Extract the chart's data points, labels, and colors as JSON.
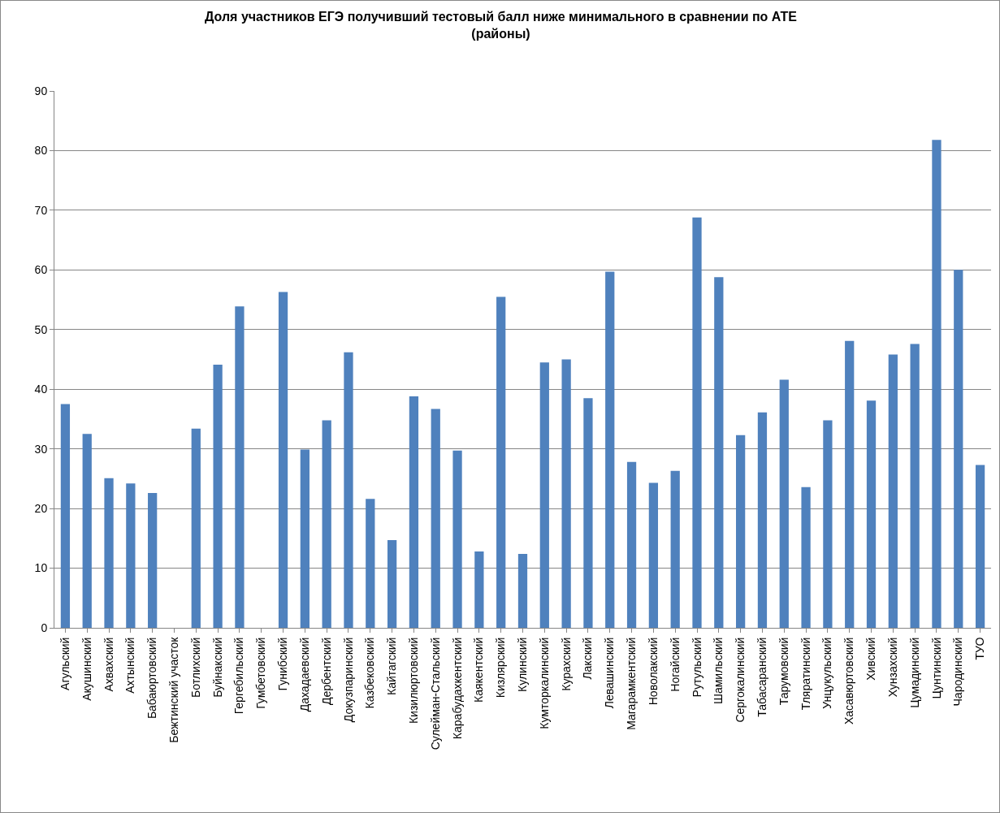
{
  "chart_data": {
    "type": "bar",
    "title": "Доля участников ЕГЭ получивший тестовый балл ниже минимального в сравнении по АТЕ\n(районы)",
    "categories": [
      "Агульский",
      "Акушинский",
      "Ахвахский",
      "Ахтынский",
      "Бабаюртовский",
      "Бежтинский участок",
      "Ботлихский",
      "Буйнакский",
      "Гергебильский",
      "Гумбетовский",
      "Гунибский",
      "Дахадаевский",
      "Дербентский",
      "Докузпаринский",
      "Казбековский",
      "Кайтагский",
      "Кизилюртовский",
      "Сулейман-Стальский",
      "Карабудахкентский",
      "Каякентский",
      "Кизлярский",
      "Кулинский",
      "Кумторкалинский",
      "Курахский",
      "Лакский",
      "Левашинский",
      "Магарамкентский",
      "Новолакский",
      "Ногайский",
      "Рутульский",
      "Шамильский",
      "Сергокалинский",
      "Табасаранский",
      "Тарумовский",
      "Тляратинский",
      "Унцукульский",
      "Хасавюртовский",
      "Хивский",
      "Хунзахский",
      "Цумадинский",
      "Цунтинский",
      "Чародинский",
      "ТУО"
    ],
    "values": [
      37.5,
      32.5,
      25.1,
      24.2,
      22.6,
      null,
      33.4,
      44.1,
      53.9,
      null,
      56.3,
      29.9,
      34.8,
      46.2,
      21.6,
      14.7,
      38.8,
      36.7,
      29.7,
      12.8,
      55.5,
      12.4,
      44.5,
      45.0,
      38.5,
      59.7,
      27.8,
      24.3,
      26.3,
      68.8,
      58.8,
      32.3,
      36.1,
      41.6,
      23.6,
      34.8,
      48.1,
      38.1,
      45.8,
      47.6,
      81.8,
      60.0,
      27.3
    ],
    "color": "#4f81bd",
    "ylim": [
      0,
      90
    ],
    "yticks": [
      0,
      10,
      20,
      30,
      40,
      50,
      60,
      70,
      80,
      90
    ],
    "grid": "y",
    "legend": false
  }
}
